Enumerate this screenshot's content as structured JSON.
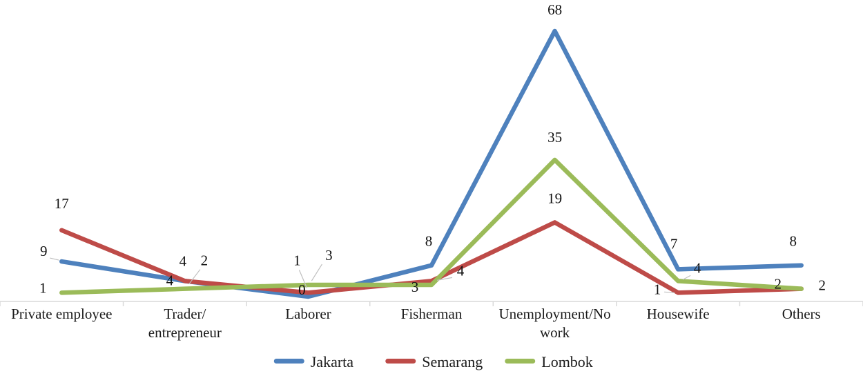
{
  "chart_data": {
    "type": "line",
    "title": "",
    "xlabel": "",
    "ylabel": "",
    "ylim": [
      0,
      68
    ],
    "grid": "off",
    "legend_position": "bottom",
    "axis_color": "#D9D9D9",
    "leader_color": "#BFBFBF",
    "categories": [
      "Private employee",
      "Trader/ entrepreneur",
      "Laborer",
      "Fisherman",
      "Unemployment/No work",
      "Housewife",
      "Others"
    ],
    "category_lines": [
      [
        "Private employee"
      ],
      [
        "Trader/",
        "entrepreneur"
      ],
      [
        "Laborer"
      ],
      [
        "Fisherman"
      ],
      [
        "Unemployment/No",
        "work"
      ],
      [
        "Housewife"
      ],
      [
        "Others"
      ]
    ],
    "series": [
      {
        "name": "Jakarta",
        "color": "#4E81BD",
        "values": [
          9,
          4,
          0,
          8,
          68,
          7,
          8
        ]
      },
      {
        "name": "Semarang",
        "color": "#BE4B48",
        "values": [
          17,
          4,
          1,
          4,
          19,
          1,
          2
        ]
      },
      {
        "name": "Lombok",
        "color": "#9BBB59",
        "values": [
          1,
          2,
          3,
          3,
          35,
          4,
          2
        ]
      }
    ]
  }
}
